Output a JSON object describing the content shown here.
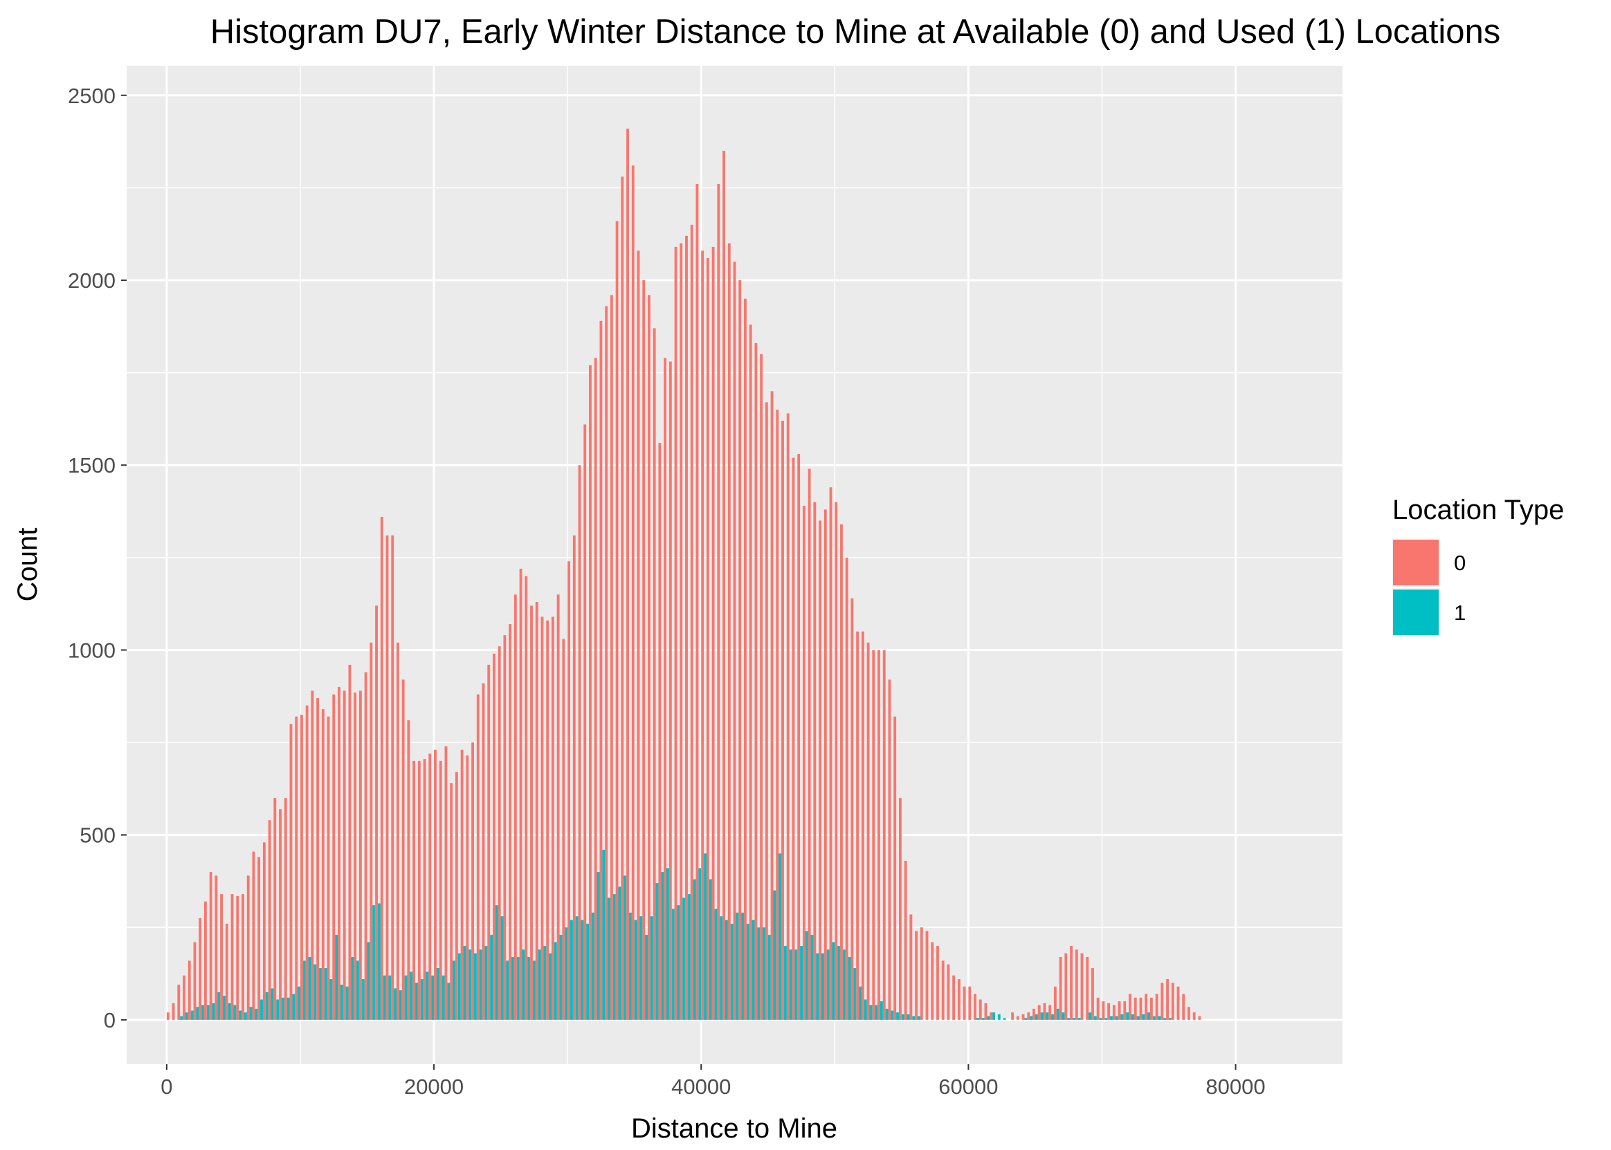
{
  "chart_data": {
    "type": "bar",
    "title": "Histogram DU7, Early Winter Distance to Mine at Available (0) and Used (1) Locations",
    "xlabel": "Distance to Mine",
    "ylabel": "Count",
    "xlim": [
      -3000,
      88000
    ],
    "ylim": [
      -120,
      2580
    ],
    "x_ticks": [
      0,
      20000,
      40000,
      60000,
      80000
    ],
    "x_tick_labels": [
      "0",
      "20000",
      "40000",
      "60000",
      "80000"
    ],
    "y_ticks": [
      0,
      500,
      1000,
      1500,
      2000,
      2500
    ],
    "y_tick_labels": [
      "0",
      "500",
      "1000",
      "1500",
      "2000",
      "2500"
    ],
    "bin_start": 0,
    "bin_width": 400,
    "grid": true,
    "legend": {
      "title": "Location Type",
      "position": "right"
    },
    "series": [
      {
        "name": "0",
        "color": "#F8766D",
        "values": [
          20,
          45,
          95,
          120,
          160,
          210,
          275,
          320,
          400,
          390,
          340,
          260,
          340,
          335,
          340,
          390,
          455,
          440,
          480,
          540,
          600,
          570,
          600,
          800,
          820,
          825,
          850,
          890,
          870,
          840,
          820,
          880,
          900,
          890,
          960,
          885,
          890,
          940,
          1020,
          1120,
          1360,
          1310,
          1310,
          1020,
          920,
          810,
          700,
          700,
          705,
          720,
          730,
          700,
          740,
          640,
          670,
          730,
          715,
          750,
          880,
          910,
          960,
          990,
          1010,
          1040,
          1070,
          1150,
          1220,
          1200,
          1120,
          1130,
          1090,
          1080,
          1090,
          1150,
          1030,
          1240,
          1310,
          1500,
          1610,
          1770,
          1790,
          1890,
          1930,
          1960,
          2160,
          2280,
          2410,
          2310,
          2080,
          2000,
          1960,
          1870,
          1560,
          1790,
          1780,
          2090,
          2100,
          2120,
          2150,
          2260,
          2080,
          2060,
          2090,
          2260,
          2350,
          2100,
          2050,
          2000,
          1950,
          1880,
          1830,
          1800,
          1670,
          1700,
          1650,
          1620,
          1640,
          1520,
          1530,
          1390,
          1490,
          1400,
          1350,
          1380,
          1440,
          1400,
          1340,
          1250,
          1140,
          1050,
          1050,
          1020,
          1000,
          1000,
          1000,
          920,
          820,
          600,
          430,
          285,
          240,
          250,
          240,
          210,
          200,
          160,
          150,
          120,
          110,
          90,
          90,
          70,
          55,
          45,
          20,
          0,
          0,
          0,
          20,
          10,
          15,
          20,
          30,
          40,
          45,
          40,
          90,
          170,
          180,
          200,
          190,
          180,
          170,
          140,
          60,
          50,
          45,
          40,
          50,
          50,
          70,
          60,
          60,
          70,
          60,
          70,
          100,
          110,
          100,
          90,
          70,
          35,
          20,
          10
        ]
      },
      {
        "name": "1",
        "color": "#00BFC4",
        "values": [
          0,
          0,
          10,
          20,
          25,
          35,
          40,
          40,
          45,
          75,
          65,
          45,
          40,
          25,
          20,
          35,
          30,
          55,
          75,
          85,
          55,
          60,
          60,
          70,
          90,
          160,
          170,
          150,
          140,
          140,
          110,
          230,
          95,
          90,
          170,
          160,
          110,
          210,
          310,
          315,
          120,
          120,
          85,
          80,
          120,
          130,
          100,
          110,
          130,
          120,
          140,
          120,
          100,
          160,
          180,
          200,
          190,
          180,
          190,
          200,
          230,
          310,
          280,
          160,
          170,
          170,
          190,
          170,
          160,
          190,
          200,
          180,
          210,
          230,
          250,
          270,
          280,
          270,
          260,
          290,
          400,
          460,
          330,
          340,
          360,
          390,
          290,
          270,
          280,
          230,
          280,
          370,
          400,
          410,
          300,
          310,
          330,
          340,
          380,
          410,
          450,
          380,
          300,
          280,
          270,
          260,
          290,
          290,
          260,
          270,
          250,
          250,
          230,
          350,
          450,
          200,
          190,
          190,
          200,
          240,
          230,
          180,
          180,
          190,
          210,
          200,
          190,
          170,
          140,
          90,
          55,
          40,
          40,
          50,
          30,
          25,
          20,
          15,
          15,
          10,
          10,
          0,
          0,
          0,
          0,
          0,
          0,
          0,
          0,
          0,
          0,
          5,
          5,
          10,
          20,
          15,
          5,
          0,
          0,
          0,
          5,
          10,
          15,
          20,
          20,
          15,
          30,
          20,
          5,
          5,
          5,
          0,
          20,
          10,
          5,
          5,
          10,
          10,
          15,
          20,
          15,
          10,
          15,
          20,
          10,
          10,
          5,
          5
        ]
      }
    ]
  }
}
